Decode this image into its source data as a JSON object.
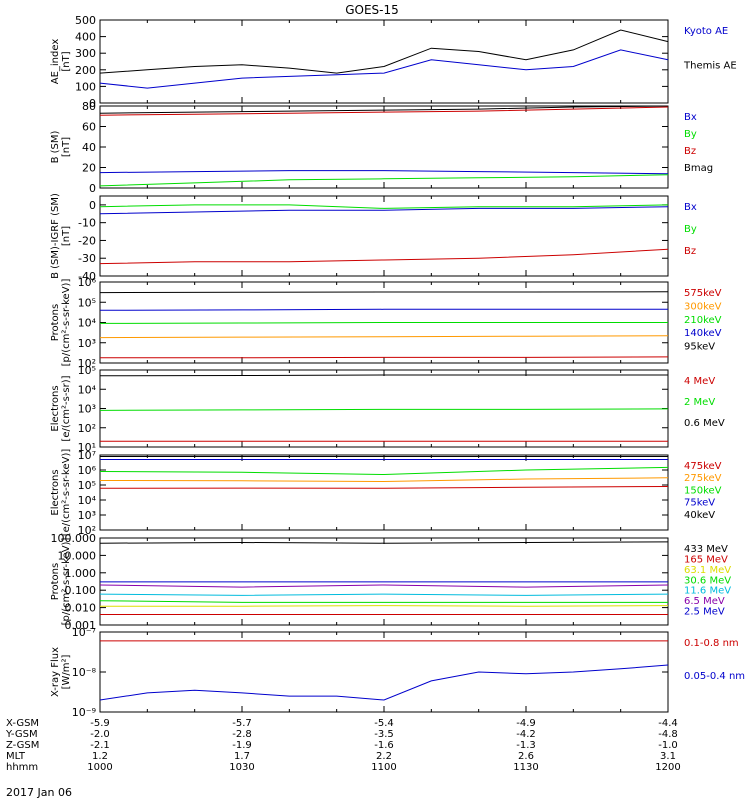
{
  "title": "GOES-15",
  "date": "2017 Jan 06",
  "footer": {
    "rows": [
      {
        "label": "X-GSM",
        "values": [
          "-5.9",
          "-5.7",
          "-5.4",
          "-4.9",
          "-4.4"
        ]
      },
      {
        "label": "Y-GSM",
        "values": [
          "-2.0",
          "-2.8",
          "-3.5",
          "-4.2",
          "-4.8"
        ]
      },
      {
        "label": "Z-GSM",
        "values": [
          "-2.1",
          "-1.9",
          "-1.6",
          "-1.3",
          "-1.0"
        ]
      },
      {
        "label": "MLT",
        "values": [
          "1.2",
          "1.7",
          "2.2",
          "2.6",
          "3.1"
        ]
      },
      {
        "label": "hhmm",
        "values": [
          "1000",
          "1030",
          "1100",
          "1130",
          "1200"
        ]
      }
    ]
  },
  "colors": {
    "black": "#000000",
    "blue": "#0000cc",
    "green": "#00dd00",
    "red": "#cc0000",
    "orange": "#ff9900",
    "cyan": "#00bbdd",
    "yellow": "#dddd00",
    "purple": "#8800aa"
  },
  "chart_data": [
    {
      "type": "line",
      "ylabel": "AE_index\n[nT]",
      "scale": "linear",
      "ylim": [
        0,
        500
      ],
      "yticks": [
        0,
        100,
        200,
        300,
        400,
        500
      ],
      "yticklabels": [
        "0",
        "100",
        "200",
        "300",
        "400",
        "500"
      ],
      "x": [
        "1000",
        "1010",
        "1020",
        "1030",
        "1040",
        "1050",
        "1100",
        "1110",
        "1120",
        "1130",
        "1140",
        "1150",
        "1200"
      ],
      "series": [
        {
          "name": "Kyoto AE",
          "color": "blue",
          "values": [
            120,
            90,
            120,
            150,
            160,
            170,
            180,
            260,
            230,
            200,
            220,
            320,
            260
          ]
        },
        {
          "name": "Themis AE",
          "color": "black",
          "values": [
            180,
            200,
            220,
            230,
            210,
            180,
            220,
            330,
            310,
            260,
            320,
            440,
            370
          ]
        }
      ]
    },
    {
      "type": "line",
      "ylabel": "B (SM)\n[nT]",
      "scale": "linear",
      "ylim": [
        0,
        80
      ],
      "yticks": [
        0,
        20,
        40,
        60,
        80
      ],
      "yticklabels": [
        "0",
        "20",
        "40",
        "60",
        "80"
      ],
      "x": [
        "1000",
        "1020",
        "1040",
        "1100",
        "1120",
        "1140",
        "1200"
      ],
      "series": [
        {
          "name": "Bx",
          "color": "blue",
          "values": [
            15,
            16,
            17,
            17,
            16,
            15,
            14
          ]
        },
        {
          "name": "By",
          "color": "green",
          "values": [
            2,
            5,
            8,
            9,
            10,
            11,
            13
          ]
        },
        {
          "name": "Bz",
          "color": "red",
          "values": [
            71,
            72,
            73,
            74,
            75,
            77,
            79
          ]
        },
        {
          "name": "Bmag",
          "color": "black",
          "values": [
            73,
            74,
            75,
            76,
            77,
            79,
            81
          ]
        }
      ]
    },
    {
      "type": "line",
      "ylabel": "B (SM)-IGRF (SM)\n[nT]",
      "scale": "linear",
      "ylim": [
        -40,
        5
      ],
      "yticks": [
        -40,
        -30,
        -20,
        -10,
        0
      ],
      "yticklabels": [
        "-40",
        "-30",
        "-20",
        "-10",
        "0"
      ],
      "x": [
        "1000",
        "1020",
        "1040",
        "1100",
        "1120",
        "1140",
        "1200"
      ],
      "series": [
        {
          "name": "Bx",
          "color": "blue",
          "values": [
            -5,
            -4,
            -3,
            -3,
            -2,
            -2,
            -1
          ]
        },
        {
          "name": "By",
          "color": "green",
          "values": [
            -1,
            0,
            0,
            -2,
            -1,
            -1,
            0
          ]
        },
        {
          "name": "Bz",
          "color": "red",
          "values": [
            -33,
            -32,
            -32,
            -31,
            -30,
            -28,
            -25
          ]
        }
      ]
    },
    {
      "type": "line",
      "ylabel": "Protons\n[p/(cm²-s-sr-keV)]",
      "scale": "log",
      "ylim": [
        100,
        1000000
      ],
      "yticks": [
        100,
        1000,
        10000,
        100000,
        1000000
      ],
      "yticklabels": [
        "10²",
        "10³",
        "10⁴",
        "10⁵",
        "10⁶"
      ],
      "x": [
        "1000",
        "1030",
        "1100",
        "1130",
        "1200"
      ],
      "series": [
        {
          "name": "575keV",
          "color": "red",
          "values": [
            180,
            180,
            190,
            190,
            200
          ]
        },
        {
          "name": "300keV",
          "color": "orange",
          "values": [
            1800,
            1900,
            2000,
            2100,
            2200
          ]
        },
        {
          "name": "210keV",
          "color": "green",
          "values": [
            9000,
            9500,
            10000,
            10000,
            10000
          ]
        },
        {
          "name": "140keV",
          "color": "blue",
          "values": [
            40000,
            42000,
            45000,
            45000,
            45000
          ]
        },
        {
          "name": "95keV",
          "color": "black",
          "values": [
            300000,
            310000,
            320000,
            320000,
            330000
          ]
        }
      ]
    },
    {
      "type": "line",
      "ylabel": "Electrons\n[e/(cm²-s-sr)]",
      "scale": "log",
      "ylim": [
        10,
        100000
      ],
      "yticks": [
        10,
        100,
        1000,
        10000,
        100000
      ],
      "yticklabels": [
        "10¹",
        "10²",
        "10³",
        "10⁴",
        "10⁵"
      ],
      "x": [
        "1000",
        "1030",
        "1100",
        "1130",
        "1200"
      ],
      "series": [
        {
          "name": "4 MeV",
          "color": "red",
          "values": [
            20,
            20,
            20,
            20,
            20
          ]
        },
        {
          "name": "2 MeV",
          "color": "green",
          "values": [
            800,
            850,
            900,
            900,
            950
          ]
        },
        {
          "name": "0.6 MeV",
          "color": "black",
          "values": [
            50000,
            52000,
            55000,
            55000,
            55000
          ]
        }
      ]
    },
    {
      "type": "line",
      "ylabel": "Electrons\n[e/(cm²-s-sr-keV)]",
      "scale": "log",
      "ylim": [
        100,
        10000000
      ],
      "yticks": [
        100,
        1000,
        10000,
        100000,
        1000000,
        10000000
      ],
      "yticklabels": [
        "10²",
        "10³",
        "10⁴",
        "10⁵",
        "10⁶",
        "10⁷"
      ],
      "x": [
        "1000",
        "1030",
        "1100",
        "1130",
        "1200"
      ],
      "series": [
        {
          "name": "475keV",
          "color": "red",
          "values": [
            60000,
            62000,
            60000,
            70000,
            80000
          ]
        },
        {
          "name": "275keV",
          "color": "orange",
          "values": [
            200000,
            190000,
            170000,
            250000,
            300000
          ]
        },
        {
          "name": "150keV",
          "color": "green",
          "values": [
            800000,
            700000,
            500000,
            1000000,
            1500000
          ]
        },
        {
          "name": "75keV",
          "color": "blue",
          "values": [
            5000000,
            5000000,
            5000000,
            5000000,
            5000000
          ]
        },
        {
          "name": "40keV",
          "color": "black",
          "values": [
            8000000,
            8000000,
            8000000,
            8000000,
            8000000
          ]
        }
      ]
    },
    {
      "type": "line",
      "ylabel": "Protons\n[p/(cm²-s-sr-keV)]",
      "scale": "log",
      "ylim": [
        0.001,
        100
      ],
      "yticks": [
        0.001,
        0.01,
        0.1,
        1,
        10,
        100
      ],
      "yticklabels": [
        "0.001",
        "0.010",
        "0.100",
        "1.000",
        "10.000",
        "100.000"
      ],
      "x": [
        "1000",
        "1030",
        "1100",
        "1130",
        "1200"
      ],
      "series": [
        {
          "name": "433 MeV",
          "color": "black",
          "values": [
            50,
            55,
            50,
            55,
            60
          ]
        },
        {
          "name": "165 MeV",
          "color": "red",
          "values": [
            0.004,
            0.004,
            0.004,
            0.004,
            0.004
          ]
        },
        {
          "name": "63.1 MeV",
          "color": "yellow",
          "values": [
            0.012,
            0.012,
            0.013,
            0.012,
            0.013
          ]
        },
        {
          "name": "30.6 MeV",
          "color": "green",
          "values": [
            0.025,
            0.02,
            0.02,
            0.02,
            0.02
          ]
        },
        {
          "name": "11.6 MeV",
          "color": "cyan",
          "values": [
            0.06,
            0.05,
            0.06,
            0.05,
            0.06
          ]
        },
        {
          "name": "6.5 MeV",
          "color": "purple",
          "values": [
            0.2,
            0.15,
            0.2,
            0.15,
            0.2
          ]
        },
        {
          "name": "2.5 MeV",
          "color": "blue",
          "values": [
            0.3,
            0.3,
            0.3,
            0.3,
            0.3
          ]
        }
      ]
    },
    {
      "type": "line",
      "ylabel": "X-ray Flux\n[W/m²]",
      "scale": "log",
      "ylim": [
        1e-09,
        1e-07
      ],
      "yticks": [
        1e-09,
        1e-08,
        1e-07
      ],
      "yticklabels": [
        "10⁻⁹",
        "10⁻⁸",
        "10⁻⁷"
      ],
      "x": [
        "1000",
        "1010",
        "1020",
        "1030",
        "1040",
        "1050",
        "1100",
        "1110",
        "1120",
        "1130",
        "1140",
        "1150",
        "1200"
      ],
      "series": [
        {
          "name": "0.1-0.8 nm",
          "color": "red",
          "values": [
            6e-08,
            6e-08,
            6e-08,
            6e-08,
            6e-08,
            6e-08,
            6e-08,
            6e-08,
            6e-08,
            6e-08,
            6e-08,
            6e-08,
            6e-08
          ]
        },
        {
          "name": "0.05-0.4 nm",
          "color": "blue",
          "values": [
            2e-09,
            3e-09,
            3.5e-09,
            3e-09,
            2.5e-09,
            2.5e-09,
            2e-09,
            6e-09,
            1e-08,
            9e-09,
            1e-08,
            1.2e-08,
            1.5e-08
          ]
        }
      ]
    }
  ]
}
